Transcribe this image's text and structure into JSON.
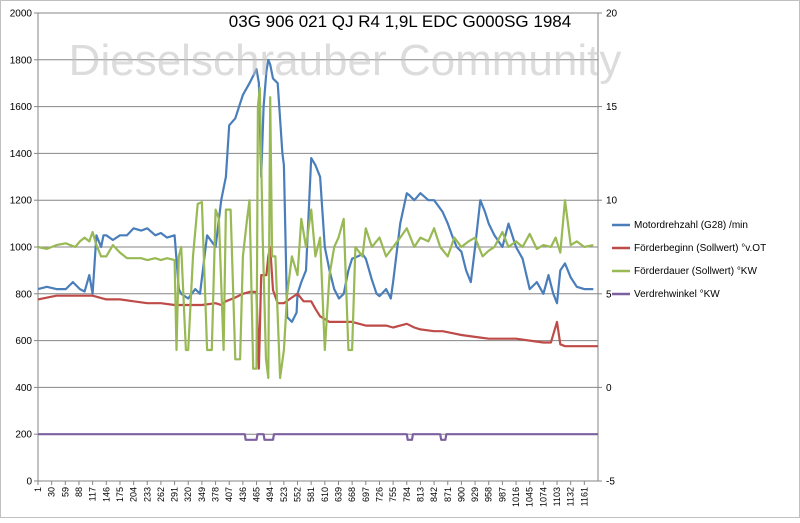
{
  "chart_data": {
    "type": "line",
    "title": "03G 906 021 QJ R4 1,9L EDC G000SG  1984",
    "watermark": "Dieselschrauber Community",
    "xlabel": "",
    "ylabel_left": "",
    "ylabel_right": "",
    "ylim_left": [
      0,
      2000
    ],
    "ylim_right": [
      -5,
      20
    ],
    "yticks_left": [
      0,
      200,
      400,
      600,
      800,
      1000,
      1200,
      1400,
      1600,
      1800,
      2000
    ],
    "yticks_right": [
      -5,
      0,
      5,
      10,
      15,
      20
    ],
    "xlim": [
      1,
      1190
    ],
    "xticks": [
      1,
      30,
      59,
      88,
      117,
      146,
      175,
      204,
      233,
      262,
      291,
      320,
      349,
      378,
      407,
      436,
      465,
      494,
      523,
      552,
      581,
      610,
      639,
      668,
      697,
      726,
      755,
      784,
      813,
      842,
      871,
      900,
      929,
      958,
      987,
      1016,
      1045,
      1074,
      1103,
      1132,
      1161
    ],
    "grid": true,
    "legend_position": "right",
    "series": [
      {
        "name": "Motordrehzahl (G28)  /min",
        "axis": "left",
        "color": "#4a7ebb",
        "x": [
          1,
          20,
          40,
          60,
          75,
          90,
          100,
          110,
          117,
          125,
          135,
          140,
          146,
          160,
          175,
          190,
          204,
          220,
          233,
          250,
          262,
          275,
          291,
          300,
          305,
          320,
          335,
          345,
          360,
          378,
          390,
          400,
          407,
          420,
          436,
          450,
          465,
          470,
          475,
          480,
          486,
          490,
          494,
          500,
          510,
          520,
          523,
          530,
          540,
          550,
          552,
          560,
          570,
          581,
          590,
          600,
          610,
          620,
          630,
          640,
          650,
          660,
          668,
          680,
          690,
          697,
          710,
          720,
          726,
          740,
          750,
          755,
          770,
          784,
          790,
          800,
          813,
          830,
          842,
          860,
          871,
          880,
          890,
          900,
          910,
          920,
          929,
          940,
          950,
          958,
          970,
          987,
          1000,
          1016,
          1030,
          1045,
          1060,
          1074,
          1085,
          1095,
          1103,
          1110,
          1120,
          1132,
          1145,
          1161,
          1180
        ],
        "y": [
          820,
          830,
          820,
          820,
          850,
          820,
          810,
          880,
          800,
          1050,
          1000,
          1050,
          1050,
          1030,
          1050,
          1050,
          1080,
          1070,
          1080,
          1050,
          1060,
          1040,
          1050,
          820,
          800,
          780,
          820,
          800,
          1050,
          1000,
          1200,
          1300,
          1520,
          1550,
          1650,
          1700,
          1760,
          1700,
          1300,
          1600,
          1750,
          1800,
          1780,
          1720,
          1700,
          1400,
          1350,
          700,
          680,
          720,
          800,
          850,
          900,
          1380,
          1350,
          1300,
          1000,
          900,
          820,
          780,
          800,
          900,
          950,
          960,
          970,
          950,
          860,
          800,
          790,
          820,
          780,
          850,
          1100,
          1230,
          1220,
          1200,
          1230,
          1200,
          1200,
          1150,
          1100,
          1050,
          1000,
          980,
          900,
          850,
          1000,
          1200,
          1150,
          1100,
          1050,
          1000,
          1100,
          1000,
          950,
          820,
          850,
          800,
          880,
          800,
          760,
          900,
          930,
          870,
          830,
          820,
          820
        ]
      },
      {
        "name": "Förderbeginn (Sollwert)  °v.OT",
        "axis": "right",
        "color": "#be4b48",
        "x": [
          1,
          40,
          80,
          117,
          146,
          175,
          204,
          233,
          262,
          291,
          320,
          349,
          378,
          390,
          400,
          420,
          436,
          450,
          465,
          470,
          475,
          480,
          486,
          490,
          494,
          500,
          510,
          523,
          540,
          552,
          565,
          581,
          590,
          600,
          620,
          639,
          668,
          697,
          726,
          740,
          755,
          770,
          784,
          800,
          813,
          842,
          860,
          880,
          900,
          929,
          958,
          987,
          1016,
          1045,
          1074,
          1090,
          1103,
          1110,
          1120,
          1132,
          1161,
          1190
        ],
        "y": [
          4.7,
          4.9,
          4.9,
          4.9,
          4.7,
          4.7,
          4.6,
          4.5,
          4.5,
          4.4,
          4.4,
          4.4,
          4.5,
          4.4,
          4.6,
          4.8,
          5.0,
          5.1,
          5.1,
          1.0,
          6.0,
          6.0,
          6.0,
          7.0,
          7.5,
          5.2,
          4.5,
          4.5,
          4.8,
          5.0,
          4.6,
          4.6,
          4.2,
          3.8,
          3.5,
          3.5,
          3.5,
          3.3,
          3.3,
          3.3,
          3.2,
          3.3,
          3.4,
          3.2,
          3.1,
          3.0,
          3.0,
          2.9,
          2.8,
          2.7,
          2.6,
          2.6,
          2.6,
          2.5,
          2.4,
          2.4,
          3.5,
          2.3,
          2.2,
          2.2,
          2.2,
          2.2
        ]
      },
      {
        "name": "Förderdauer (Sollwert) °KW",
        "axis": "right",
        "color": "#98b954",
        "x": [
          1,
          20,
          40,
          60,
          80,
          90,
          100,
          110,
          117,
          125,
          135,
          146,
          160,
          175,
          190,
          204,
          220,
          233,
          250,
          262,
          275,
          291,
          295,
          300,
          305,
          315,
          320,
          330,
          340,
          349,
          360,
          370,
          378,
          385,
          395,
          400,
          410,
          420,
          430,
          436,
          445,
          450,
          458,
          465,
          468,
          472,
          478,
          485,
          490,
          494,
          498,
          505,
          515,
          523,
          530,
          540,
          552,
          560,
          570,
          581,
          590,
          600,
          610,
          620,
          630,
          639,
          650,
          660,
          668,
          675,
          690,
          697,
          710,
          726,
          740,
          755,
          770,
          784,
          800,
          813,
          830,
          842,
          855,
          871,
          885,
          900,
          915,
          929,
          945,
          958,
          970,
          987,
          1000,
          1016,
          1030,
          1045,
          1060,
          1074,
          1090,
          1100,
          1110,
          1120,
          1132,
          1145,
          1161,
          1180
        ],
        "y": [
          7.5,
          7.4,
          7.6,
          7.7,
          7.5,
          7.8,
          8.0,
          7.8,
          8.3,
          7.6,
          7.0,
          7.0,
          7.6,
          7.2,
          6.9,
          6.9,
          6.9,
          6.8,
          6.9,
          6.8,
          6.9,
          6.8,
          2.0,
          7.0,
          7.5,
          2.0,
          2.0,
          7.0,
          9.8,
          9.9,
          2.0,
          2.0,
          9.5,
          9.0,
          2.0,
          9.5,
          9.5,
          1.5,
          1.5,
          7.0,
          9.0,
          10.0,
          1.0,
          1.0,
          15.0,
          16.0,
          8.0,
          1.5,
          0.5,
          15.5,
          7.0,
          7.0,
          0.5,
          2.0,
          5.0,
          7.0,
          6.0,
          9.0,
          7.5,
          9.5,
          7.0,
          8.0,
          2.0,
          6.0,
          7.5,
          8.0,
          9.0,
          2.0,
          2.0,
          7.5,
          7.0,
          8.5,
          7.5,
          8.0,
          7.0,
          7.5,
          8.0,
          8.5,
          7.5,
          8.0,
          7.8,
          8.5,
          7.5,
          7.0,
          8.0,
          7.5,
          7.8,
          8.0,
          7.0,
          7.3,
          7.5,
          8.3,
          7.5,
          7.8,
          7.5,
          8.2,
          7.4,
          7.6,
          7.5,
          8.0,
          7.2,
          10.0,
          7.6,
          7.8,
          7.5,
          7.6
        ]
      },
      {
        "name": "Verdrehwinkel °KW",
        "axis": "right",
        "color": "#7d60a0",
        "x": [
          1,
          440,
          442,
          465,
          467,
          480,
          482,
          500,
          502,
          784,
          786,
          795,
          797,
          855,
          857,
          866,
          868,
          1190
        ],
        "y": [
          -2.5,
          -2.5,
          -2.8,
          -2.8,
          -2.5,
          -2.5,
          -2.8,
          -2.8,
          -2.5,
          -2.5,
          -2.8,
          -2.8,
          -2.5,
          -2.5,
          -2.8,
          -2.8,
          -2.5,
          -2.5
        ]
      }
    ]
  }
}
